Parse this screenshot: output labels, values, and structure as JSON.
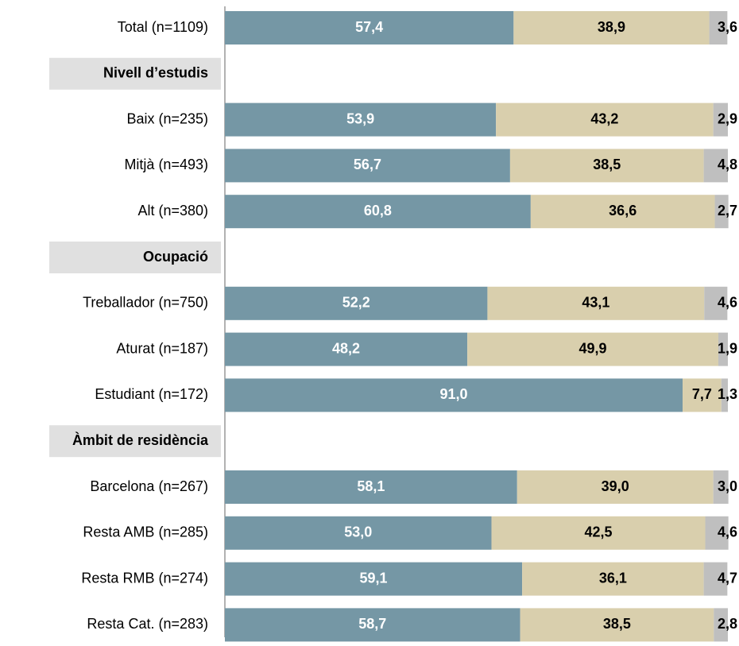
{
  "chart_data": {
    "type": "stacked-bar-horizontal",
    "categories": [
      "Total (n=1109)",
      "Nivell d’estudis",
      "Baix (n=235)",
      "Mitjà (n=493)",
      "Alt (n=380)",
      "Ocupació",
      "Treballador (n=750)",
      "Aturat (n=187)",
      "Estudiant (n=172)",
      "Àmbit de residència",
      "Barcelona (n=267)",
      "Resta AMB (n=285)",
      "Resta RMB (n=274)",
      "Resta Cat. (n=283)"
    ],
    "xlim": [
      0,
      100
    ],
    "series": [
      {
        "color": "#7597a5",
        "label_color": "#ffffff",
        "values": [
          57.4,
          null,
          53.9,
          56.7,
          60.8,
          null,
          52.2,
          48.2,
          91.0,
          null,
          58.1,
          53.0,
          59.1,
          58.7
        ],
        "value_labels": [
          "57,4",
          null,
          "53,9",
          "56,7",
          "60,8",
          null,
          "52,2",
          "48,2",
          "91,0",
          null,
          "58,1",
          "53,0",
          "59,1",
          "58,7"
        ]
      },
      {
        "color": "#d9cfad",
        "label_color": "#000000",
        "values": [
          38.9,
          null,
          43.2,
          38.5,
          36.6,
          null,
          43.1,
          49.9,
          7.7,
          null,
          39.0,
          42.5,
          36.1,
          38.5
        ],
        "value_labels": [
          "38,9",
          null,
          "43,2",
          "38,5",
          "36,6",
          null,
          "43,1",
          "49,9",
          "7,7",
          null,
          "39,0",
          "42,5",
          "36,1",
          "38,5"
        ]
      },
      {
        "color": "#bfbfbf",
        "label_color": "#000000",
        "values": [
          3.6,
          null,
          2.9,
          4.8,
          2.7,
          null,
          4.6,
          1.9,
          1.3,
          null,
          3.0,
          4.6,
          4.7,
          2.8
        ],
        "value_labels": [
          "3,6",
          null,
          "2,9",
          "4,8",
          "2,7",
          null,
          "4,6",
          "1,9",
          "1,3",
          null,
          "3,0",
          "4,6",
          "4,7",
          "2,8"
        ]
      }
    ]
  }
}
